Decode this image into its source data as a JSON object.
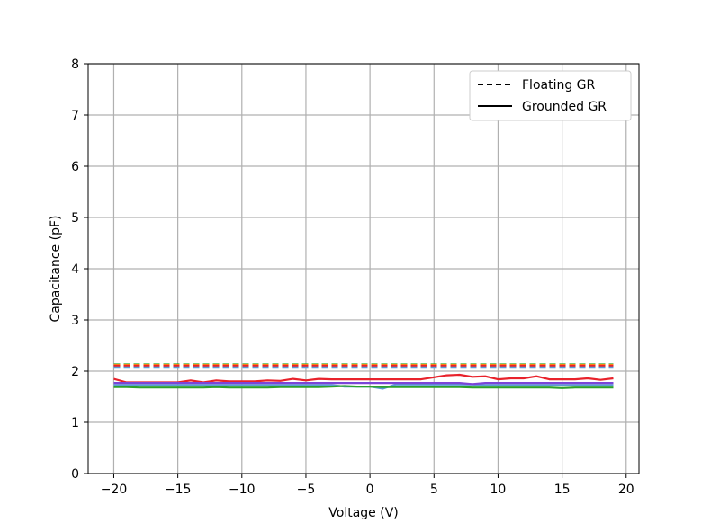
{
  "chart_data": {
    "type": "line",
    "title": "",
    "xlabel": "Voltage (V)",
    "ylabel": "Capacitance (pF)",
    "xlim": [
      -22,
      21
    ],
    "ylim": [
      0,
      8
    ],
    "x_ticks": [
      -20,
      -15,
      -10,
      -5,
      0,
      5,
      10,
      15,
      20
    ],
    "x_tick_labels": [
      "−20",
      "−15",
      "−10",
      "−5",
      "0",
      "5",
      "10",
      "15",
      "20"
    ],
    "y_ticks": [
      0,
      1,
      2,
      3,
      4,
      5,
      6,
      7,
      8
    ],
    "y_tick_labels": [
      "0",
      "1",
      "2",
      "3",
      "4",
      "5",
      "6",
      "7",
      "8"
    ],
    "grid": true,
    "legend": {
      "placement": "top-right",
      "entries": [
        {
          "label": "Floating GR",
          "style": "dashed"
        },
        {
          "label": "Grounded GR",
          "style": "solid"
        }
      ]
    },
    "x": [
      -20,
      -19,
      -18,
      -17,
      -16,
      -15,
      -14,
      -13,
      -12,
      -11,
      -10,
      -9,
      -8,
      -7,
      -6,
      -5,
      -4,
      -3,
      -2,
      -1,
      0,
      1,
      2,
      3,
      4,
      5,
      6,
      7,
      8,
      9,
      10,
      11,
      12,
      13,
      14,
      15,
      16,
      17,
      18,
      19
    ],
    "series": [
      {
        "style": "dashed",
        "color": "#2ca02c",
        "values": [
          2.13,
          2.13,
          2.13,
          2.13,
          2.13,
          2.13,
          2.13,
          2.13,
          2.13,
          2.13,
          2.13,
          2.13,
          2.13,
          2.13,
          2.13,
          2.13,
          2.13,
          2.13,
          2.13,
          2.13,
          2.13,
          2.13,
          2.13,
          2.13,
          2.13,
          2.13,
          2.13,
          2.13,
          2.13,
          2.13,
          2.13,
          2.13,
          2.13,
          2.13,
          2.13,
          2.13,
          2.13,
          2.13,
          2.13,
          2.13
        ]
      },
      {
        "style": "dashed",
        "color": "#ff7f0e",
        "values": [
          2.12,
          2.12,
          2.12,
          2.12,
          2.12,
          2.12,
          2.12,
          2.12,
          2.12,
          2.12,
          2.12,
          2.12,
          2.12,
          2.12,
          2.12,
          2.12,
          2.12,
          2.12,
          2.12,
          2.12,
          2.12,
          2.12,
          2.12,
          2.12,
          2.12,
          2.12,
          2.12,
          2.12,
          2.12,
          2.12,
          2.12,
          2.12,
          2.12,
          2.12,
          2.12,
          2.12,
          2.12,
          2.12,
          2.12,
          2.12
        ]
      },
      {
        "style": "dashed",
        "color": "#e8222b",
        "values": [
          2.1,
          2.1,
          2.1,
          2.1,
          2.1,
          2.1,
          2.1,
          2.1,
          2.1,
          2.1,
          2.1,
          2.1,
          2.1,
          2.1,
          2.1,
          2.1,
          2.1,
          2.1,
          2.1,
          2.1,
          2.1,
          2.1,
          2.1,
          2.1,
          2.1,
          2.1,
          2.1,
          2.1,
          2.1,
          2.1,
          2.1,
          2.1,
          2.1,
          2.1,
          2.1,
          2.1,
          2.1,
          2.1,
          2.1,
          2.1
        ]
      },
      {
        "style": "dashed",
        "color": "#5b9bd5",
        "values": [
          2.07,
          2.07,
          2.07,
          2.07,
          2.07,
          2.07,
          2.07,
          2.07,
          2.07,
          2.07,
          2.07,
          2.07,
          2.07,
          2.07,
          2.07,
          2.07,
          2.07,
          2.07,
          2.07,
          2.07,
          2.07,
          2.07,
          2.07,
          2.07,
          2.07,
          2.07,
          2.07,
          2.07,
          2.07,
          2.07,
          2.07,
          2.07,
          2.07,
          2.07,
          2.07,
          2.07,
          2.07,
          2.07,
          2.07,
          2.07
        ]
      },
      {
        "style": "solid",
        "color": "#e8222b",
        "values": [
          1.85,
          1.78,
          1.78,
          1.78,
          1.78,
          1.78,
          1.82,
          1.78,
          1.82,
          1.8,
          1.8,
          1.8,
          1.82,
          1.81,
          1.85,
          1.82,
          1.85,
          1.84,
          1.84,
          1.84,
          1.84,
          1.84,
          1.84,
          1.84,
          1.84,
          1.88,
          1.92,
          1.93,
          1.89,
          1.9,
          1.84,
          1.86,
          1.86,
          1.9,
          1.84,
          1.84,
          1.84,
          1.86,
          1.83,
          1.86
        ]
      },
      {
        "style": "solid",
        "color": "#5b9bd5",
        "values": [
          1.73,
          1.73,
          1.73,
          1.73,
          1.73,
          1.73,
          1.73,
          1.73,
          1.73,
          1.73,
          1.73,
          1.73,
          1.73,
          1.73,
          1.73,
          1.73,
          1.73,
          1.73,
          1.7,
          1.7,
          1.7,
          1.66,
          1.74,
          1.74,
          1.74,
          1.74,
          1.74,
          1.74,
          1.74,
          1.73,
          1.73,
          1.73,
          1.73,
          1.73,
          1.73,
          1.73,
          1.73,
          1.73,
          1.73,
          1.73
        ]
      },
      {
        "style": "solid",
        "color": "#7b45d8",
        "values": [
          1.77,
          1.77,
          1.77,
          1.77,
          1.77,
          1.77,
          1.77,
          1.77,
          1.77,
          1.77,
          1.77,
          1.77,
          1.77,
          1.77,
          1.77,
          1.77,
          1.77,
          1.77,
          1.77,
          1.77,
          1.77,
          1.77,
          1.77,
          1.77,
          1.77,
          1.77,
          1.77,
          1.77,
          1.75,
          1.77,
          1.77,
          1.77,
          1.77,
          1.77,
          1.77,
          1.77,
          1.77,
          1.77,
          1.77,
          1.77
        ]
      },
      {
        "style": "solid",
        "color": "#2ca02c",
        "values": [
          1.69,
          1.69,
          1.68,
          1.68,
          1.68,
          1.68,
          1.68,
          1.68,
          1.69,
          1.68,
          1.68,
          1.68,
          1.68,
          1.69,
          1.69,
          1.69,
          1.69,
          1.7,
          1.71,
          1.7,
          1.7,
          1.69,
          1.69,
          1.69,
          1.69,
          1.69,
          1.69,
          1.69,
          1.68,
          1.68,
          1.68,
          1.68,
          1.68,
          1.68,
          1.68,
          1.67,
          1.68,
          1.68,
          1.68,
          1.68
        ]
      }
    ]
  }
}
